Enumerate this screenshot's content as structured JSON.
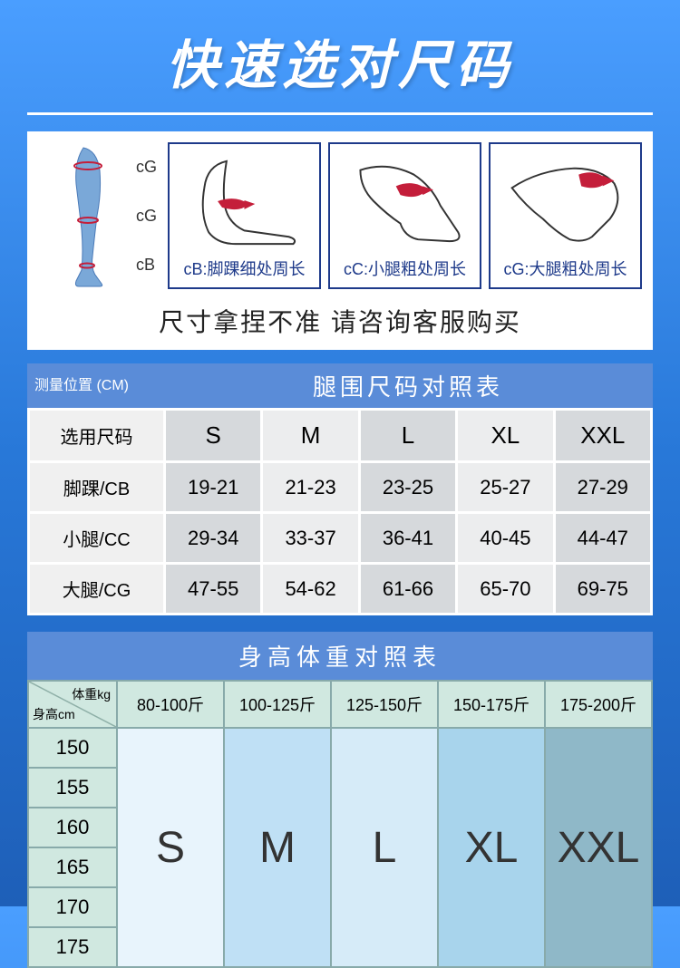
{
  "title": "快速选对尺码",
  "leg_labels": [
    "cG",
    "cG",
    "cB"
  ],
  "measure_boxes": [
    {
      "label": "cB:脚踝细处周长"
    },
    {
      "label": "cC:小腿粗处周长"
    },
    {
      "label": "cG:大腿粗处周长"
    }
  ],
  "advice": "尺寸拿捏不准 请咨询客服购买",
  "leg_table": {
    "header_left": "测量位置  (CM)",
    "header_right": "腿围尺码对照表",
    "size_label": "选用尺码",
    "sizes": [
      "S",
      "M",
      "L",
      "XL",
      "XXL"
    ],
    "rows": [
      {
        "label": "脚踝/CB",
        "cells": [
          "19-21",
          "21-23",
          "23-25",
          "25-27",
          "27-29"
        ]
      },
      {
        "label": "小腿/CC",
        "cells": [
          "29-34",
          "33-37",
          "36-41",
          "40-45",
          "44-47"
        ]
      },
      {
        "label": "大腿/CG",
        "cells": [
          "47-55",
          "54-62",
          "61-66",
          "65-70",
          "69-75"
        ]
      }
    ],
    "col_pattern_a": "#d6d9dc",
    "col_pattern_b": "#ecedee"
  },
  "hw_table": {
    "title": "身高体重对照表",
    "diag_weight": "体重kg",
    "diag_height": "身高cm",
    "weight_headers": [
      "80-100斤",
      "100-125斤",
      "125-150斤",
      "150-175斤",
      "175-200斤"
    ],
    "height_rows": [
      "150",
      "155",
      "160",
      "165",
      "170",
      "175"
    ],
    "sizes": [
      "S",
      "M",
      "L",
      "XL",
      "XXL"
    ],
    "col_colors": [
      "#e8f4fc",
      "#bfe0f5",
      "#d6ebf8",
      "#a8d4ec",
      "#8fb8c8"
    ],
    "header_bg": "#d0e8e0",
    "border_color": "#8fb0a8"
  },
  "colors": {
    "arrow": "#c41e3a",
    "leg_fill": "#7aa8d8",
    "box_border": "#1e3a8a",
    "header_blue": "#5a8cd8"
  }
}
